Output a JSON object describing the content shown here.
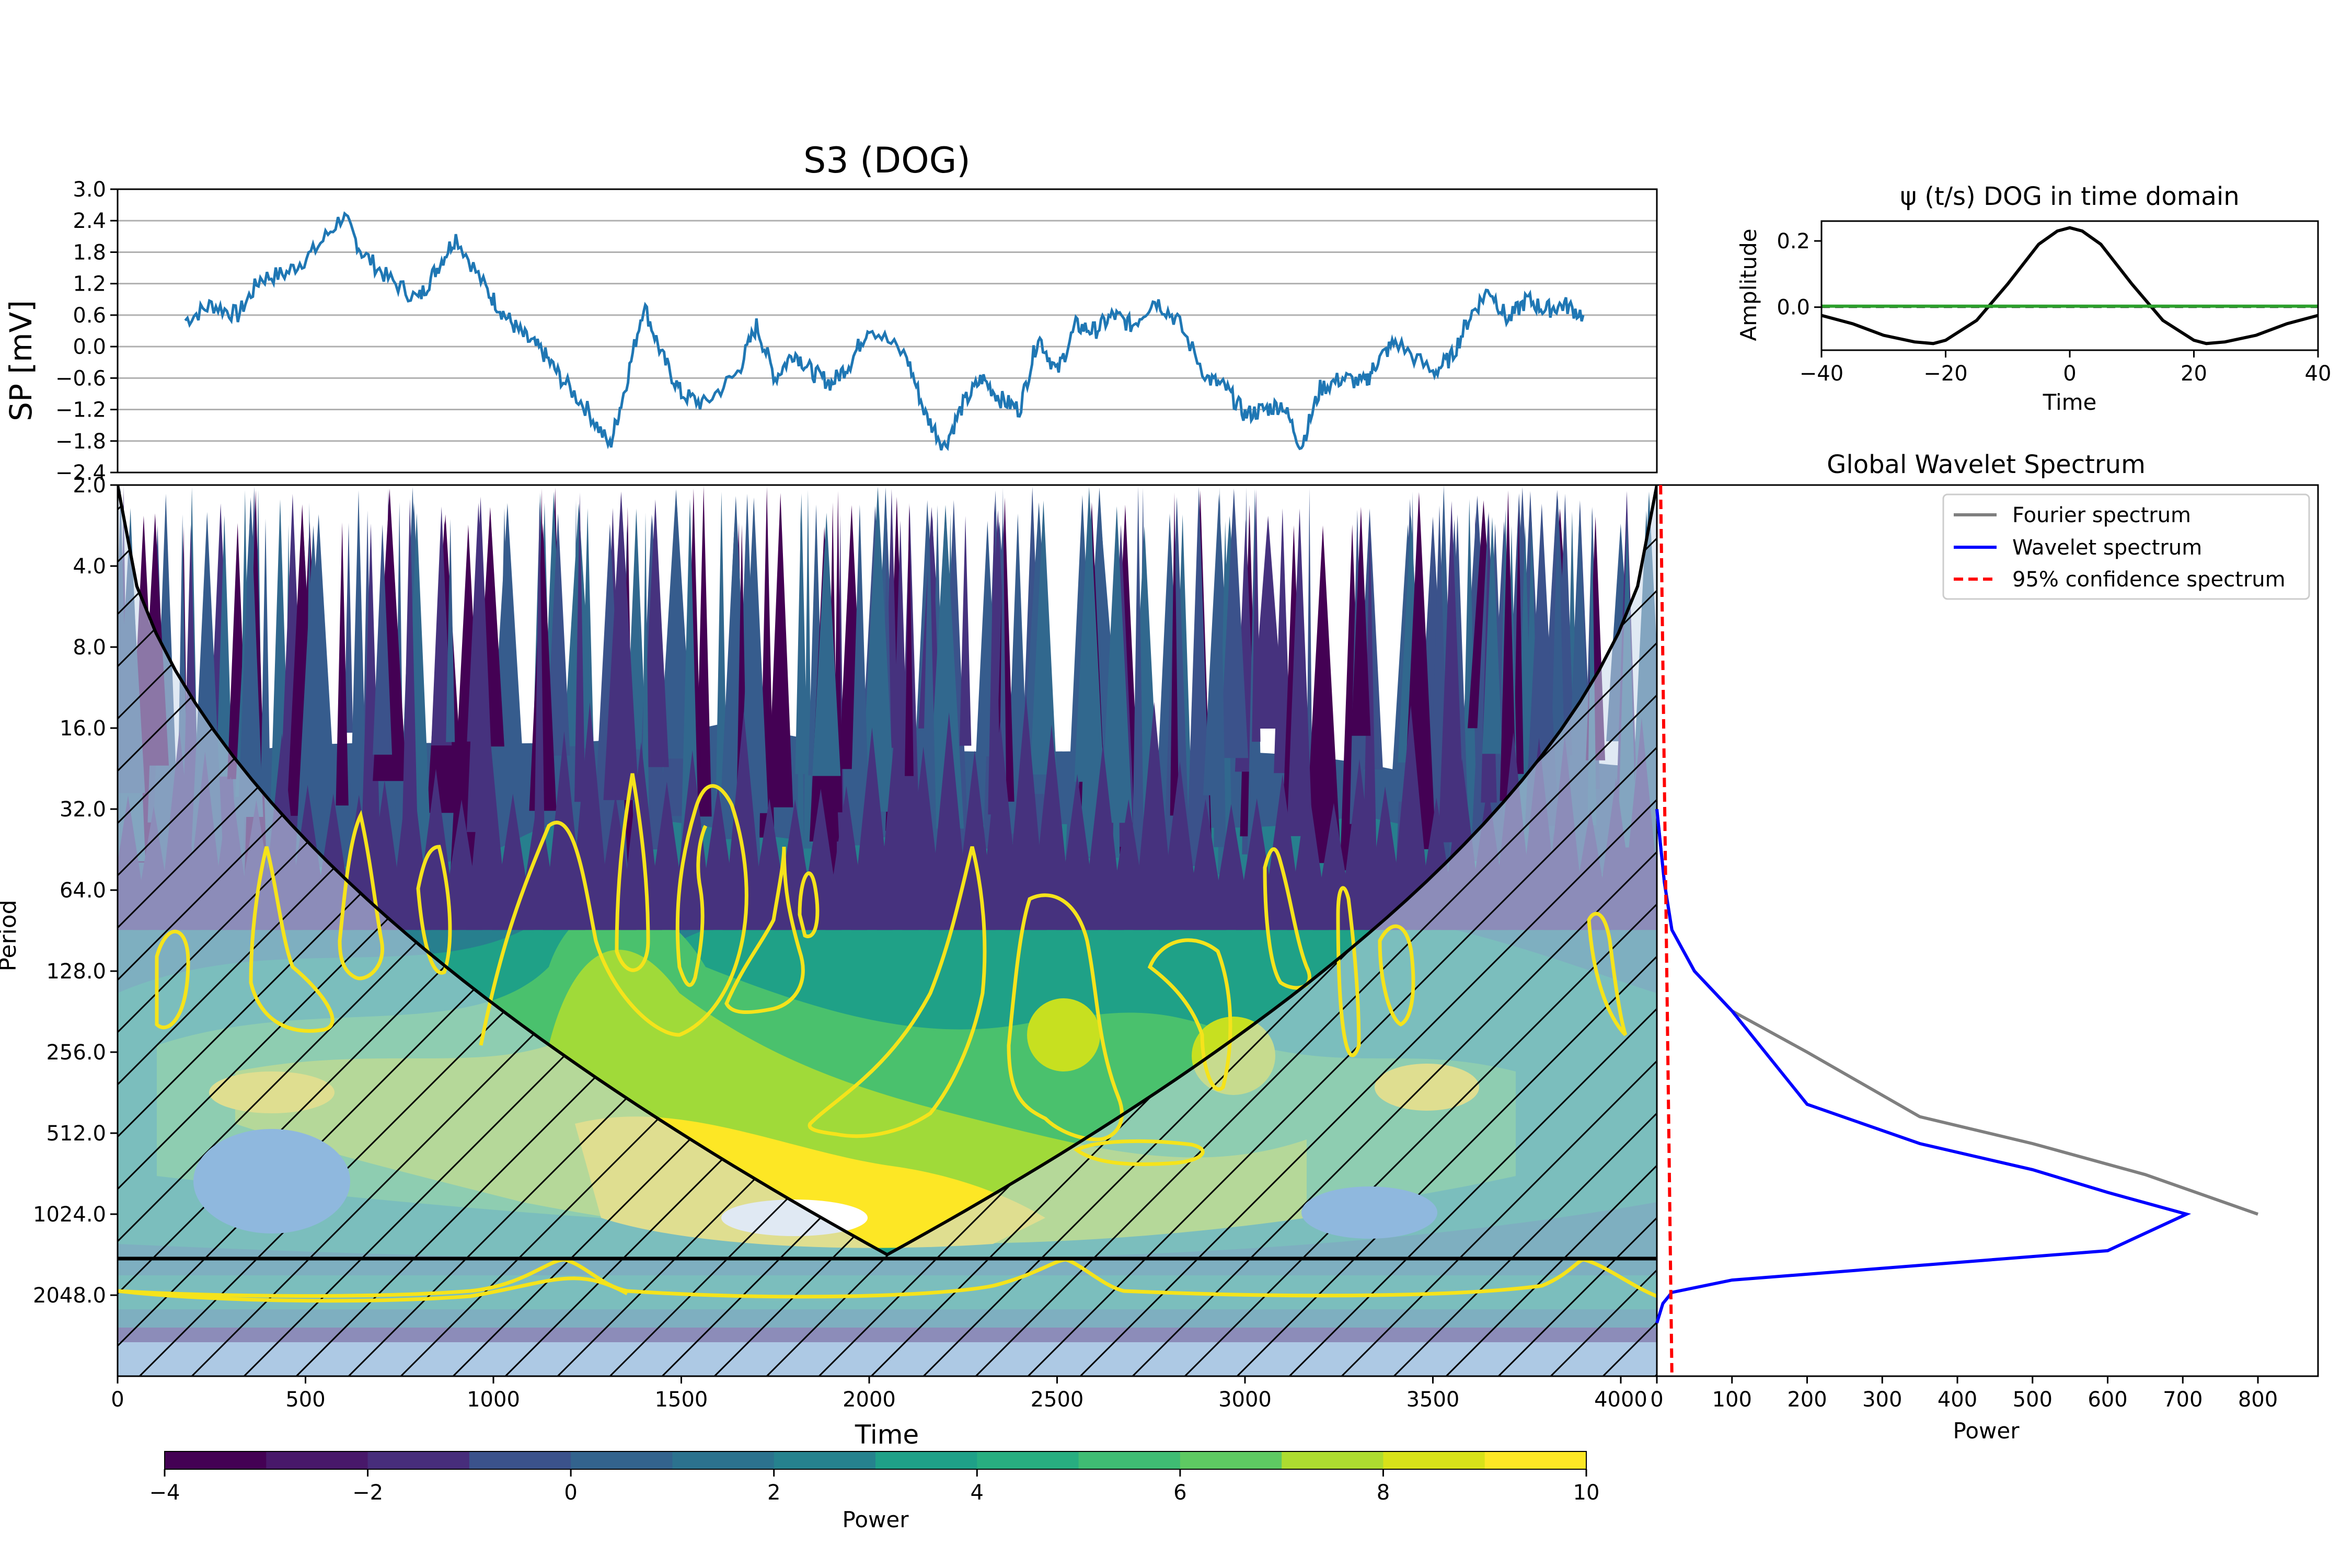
{
  "chart_data": [
    {
      "id": "signal",
      "type": "line",
      "title": "S3 (DOG)",
      "xlabel": "",
      "ylabel": "SP [mV]",
      "xlim": [
        0,
        4096
      ],
      "ylim": [
        -2.4,
        3.0
      ],
      "yticks": [
        "3.0",
        "2.4",
        "1.8",
        "1.2",
        "0.6",
        "0.0",
        "−0.6",
        "−1.2",
        "−1.8",
        "−2.4"
      ],
      "grid": "horizontal",
      "series": [
        {
          "color": "#1f77b4",
          "x": [
            180,
            250,
            320,
            380,
            450,
            520,
            600,
            650,
            720,
            800,
            850,
            900,
            980,
            1030,
            1080,
            1130,
            1180,
            1250,
            1310,
            1350,
            1400,
            1450,
            1500,
            1560,
            1650,
            1700,
            1750,
            1800,
            1850,
            1900,
            1950,
            2000,
            2100,
            2150,
            2200,
            2250,
            2300,
            2350,
            2400,
            2450,
            2500,
            2550,
            2600,
            2650,
            2700,
            2760,
            2820,
            2900,
            2950,
            3000,
            3050,
            3100,
            3150,
            3200,
            3260,
            3320,
            3350,
            3400,
            3500,
            3550,
            3600,
            3650,
            3700,
            3750,
            3800,
            3850,
            3900
          ],
          "y": [
            0.5,
            0.8,
            0.6,
            1.3,
            1.4,
            1.8,
            2.5,
            1.8,
            1.3,
            0.9,
            1.5,
            2.1,
            1.1,
            0.6,
            0.2,
            -0.1,
            -0.6,
            -1.2,
            -1.9,
            -0.8,
            0.8,
            -0.2,
            -0.9,
            -1.1,
            -0.5,
            0.4,
            -0.6,
            -0.1,
            -0.5,
            -0.7,
            -0.3,
            0.4,
            -0.2,
            -1.3,
            -1.9,
            -1.1,
            -0.6,
            -1.0,
            -1.2,
            0.2,
            -0.5,
            0.4,
            0.3,
            0.6,
            0.4,
            0.9,
            0.5,
            -0.6,
            -0.8,
            -1.3,
            -1.2,
            -1.1,
            -1.9,
            -0.8,
            -0.6,
            -0.7,
            -0.3,
            0.1,
            -0.5,
            -0.2,
            0.6,
            1.1,
            0.5,
            0.9,
            0.7,
            0.8,
            0.6
          ]
        }
      ]
    },
    {
      "id": "wavelet",
      "type": "line",
      "title": "ψ (t/s) DOG in time domain",
      "xlabel": "Time",
      "ylabel": "Amplitude",
      "xlim": [
        -40,
        40
      ],
      "ylim": [
        -0.13,
        0.26
      ],
      "xticks": [
        "−40",
        "−20",
        "0",
        "20",
        "40"
      ],
      "yticks": [
        "0.2",
        "0.0"
      ],
      "series": [
        {
          "color": "#000000",
          "style": "solid",
          "x": [
            -40,
            -35,
            -30,
            -25,
            -22,
            -20,
            -15,
            -10,
            -5,
            -2,
            0,
            2,
            5,
            10,
            15,
            20,
            22,
            25,
            30,
            35,
            40
          ],
          "y": [
            -0.025,
            -0.05,
            -0.085,
            -0.105,
            -0.11,
            -0.1,
            -0.04,
            0.07,
            0.19,
            0.23,
            0.24,
            0.23,
            0.19,
            0.07,
            -0.04,
            -0.1,
            -0.11,
            -0.105,
            -0.085,
            -0.05,
            -0.025
          ]
        },
        {
          "color": "#000000",
          "style": "dashed",
          "x": [
            -40,
            40
          ],
          "y": [
            0,
            0
          ]
        },
        {
          "color": "#2ca02c",
          "style": "solid",
          "x": [
            -40,
            40
          ],
          "y": [
            0.003,
            0.003
          ]
        }
      ]
    },
    {
      "id": "scalogram",
      "type": "heatmap",
      "title": "",
      "xlabel": "Time",
      "ylabel": "Period",
      "xlim": [
        0,
        4096
      ],
      "ylim": [
        2.0,
        4096
      ],
      "log_scale_y": true,
      "xticks": [
        "0",
        "500",
        "1000",
        "1500",
        "2000",
        "2500",
        "3000",
        "3500",
        "4000"
      ],
      "yticks": [
        "2.0",
        "4.0",
        "8.0",
        "16.0",
        "32.0",
        "64.0",
        "128.0",
        "256.0",
        "512.0",
        "1024.0",
        "2048.0"
      ],
      "colorbar": {
        "label": "Power",
        "range": [
          -4,
          10
        ],
        "ticks": [
          "−4",
          "−2",
          "0",
          "2",
          "4",
          "6",
          "8",
          "10"
        ],
        "colors": [
          "#440154",
          "#46327e",
          "#365c8d",
          "#277f8e",
          "#1fa187",
          "#4ac16d",
          "#a0da39",
          "#fde725"
        ]
      },
      "cone_of_influence": true,
      "horizontal_line_period": 1448,
      "hatch": true
    },
    {
      "id": "gws",
      "type": "line",
      "title": "Global Wavelet Spectrum",
      "xlabel": "Power",
      "ylabel": "",
      "xlim": [
        0,
        880
      ],
      "xticks": [
        "0",
        "100",
        "200",
        "300",
        "400",
        "500",
        "600",
        "700",
        "800"
      ],
      "legend": "top-right",
      "series": [
        {
          "name": "Fourier spectrum",
          "color": "#7f7f7f",
          "x": [
            0,
            10,
            20,
            50,
            100,
            200,
            350,
            500,
            650,
            800
          ],
          "y": [
            32,
            60,
            90,
            128,
            180,
            256,
            445,
            560,
            730,
            1024
          ]
        },
        {
          "name": "Wavelet spectrum",
          "color": "#0000ff",
          "x": [
            0,
            10,
            20,
            50,
            100,
            200,
            350,
            500,
            600,
            705,
            630,
            600,
            100,
            20,
            8,
            0
          ],
          "y": [
            32,
            60,
            90,
            128,
            180,
            400,
            560,
            700,
            850,
            1024,
            1280,
            1400,
            1800,
            2000,
            2200,
            2600
          ]
        },
        {
          "name": "95% confidence spectrum",
          "color": "#ff0000",
          "x": [
            5,
            20
          ],
          "y": [
            2,
            4096
          ]
        }
      ]
    }
  ]
}
